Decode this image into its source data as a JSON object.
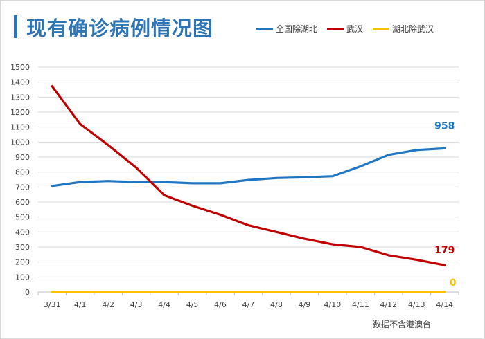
{
  "title": "现有确诊病例情况图",
  "note": "数据不含港澳台",
  "chart_data": {
    "type": "line",
    "title": "现有确诊病例情况图",
    "categories": [
      "3/31",
      "4/1",
      "4/2",
      "4/3",
      "4/4",
      "4/5",
      "4/6",
      "4/7",
      "4/8",
      "4/9",
      "4/10",
      "4/11",
      "4/12",
      "4/13",
      "4/14"
    ],
    "ylim": [
      0,
      1500
    ],
    "yticks": [
      0,
      100,
      200,
      300,
      400,
      500,
      600,
      700,
      800,
      900,
      1000,
      1100,
      1200,
      1300,
      1400,
      1500
    ],
    "grid": true,
    "legend": "top-right",
    "series": [
      {
        "name": "全国除湖北",
        "color": "#1f77c4",
        "values": [
          707,
          733,
          740,
          733,
          733,
          725,
          725,
          747,
          760,
          765,
          772,
          838,
          915,
          947,
          958
        ],
        "end_label": "958"
      },
      {
        "name": "武汉",
        "color": "#c00000",
        "values": [
          1372,
          1120,
          980,
          830,
          645,
          575,
          515,
          445,
          400,
          355,
          318,
          300,
          245,
          215,
          179
        ],
        "end_label": "179"
      },
      {
        "name": "湖北除武汉",
        "color": "#ffc000",
        "values": [
          0,
          0,
          0,
          0,
          0,
          0,
          0,
          0,
          0,
          0,
          0,
          0,
          0,
          0,
          0
        ],
        "end_label": "0"
      }
    ]
  }
}
